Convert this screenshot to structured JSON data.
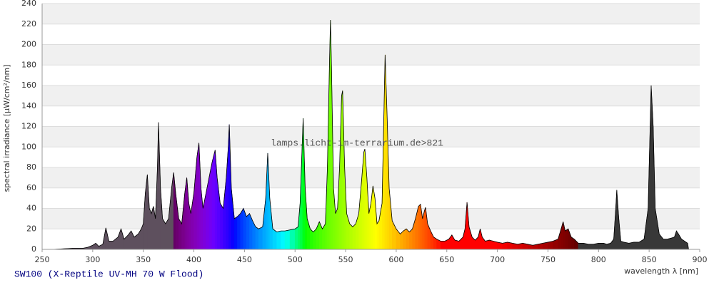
{
  "chart_data": {
    "type": "spectrum",
    "title": "SW100 (X-Reptile UV-MH 70 W Flood)",
    "watermark": "lamps.licht-im-terrarium.de>821",
    "y_label": "spectral irradiance [µW/cm²/nm]",
    "x_label": "wavelength λ [nm]",
    "xlim": [
      250,
      900
    ],
    "xticks": [
      250,
      300,
      350,
      400,
      450,
      500,
      550,
      600,
      650,
      700,
      750,
      800,
      850,
      900
    ],
    "ylim": [
      0,
      240
    ],
    "yticks": [
      0,
      20,
      40,
      60,
      80,
      100,
      120,
      140,
      160,
      180,
      200,
      220,
      240
    ],
    "grid": true,
    "band_color": "#f0f0f0",
    "line_color": "#000000",
    "uv_color": "#5e505e",
    "ir_color": "#383838",
    "visible_range": [
      380,
      780
    ],
    "x": [
      260,
      270,
      280,
      290,
      295,
      300,
      303,
      306,
      310,
      313,
      316,
      320,
      325,
      328,
      331,
      335,
      338,
      341,
      345,
      348,
      350,
      352,
      354,
      356,
      358,
      360,
      362,
      364,
      365,
      367,
      369,
      372,
      375,
      378,
      380,
      382,
      385,
      388,
      391,
      393,
      395,
      397,
      400,
      403,
      405,
      407,
      409,
      412,
      415,
      418,
      421,
      423,
      426,
      429,
      432,
      434,
      435,
      437,
      440,
      443,
      446,
      449,
      452,
      455,
      458,
      461,
      464,
      468,
      471,
      473,
      475,
      478,
      482,
      486,
      490,
      495,
      500,
      503,
      505,
      507,
      508,
      510,
      512,
      515,
      518,
      521,
      524,
      527,
      530,
      532,
      534,
      535,
      536,
      538,
      540,
      542,
      544,
      546,
      547,
      549,
      551,
      554,
      557,
      560,
      563,
      566,
      568,
      569,
      571,
      573,
      575,
      577,
      579,
      581,
      583,
      586,
      588,
      589,
      591,
      593,
      596,
      600,
      604,
      607,
      610,
      613,
      616,
      619,
      622,
      624,
      626,
      628,
      629,
      631,
      634,
      637,
      640,
      644,
      648,
      652,
      655,
      658,
      662,
      666,
      668,
      670,
      672,
      675,
      678,
      681,
      683,
      685,
      688,
      692,
      696,
      700,
      705,
      710,
      715,
      720,
      725,
      730,
      735,
      740,
      745,
      750,
      755,
      760,
      763,
      765,
      767,
      770,
      773,
      776,
      780,
      785,
      790,
      795,
      800,
      805,
      808,
      812,
      815,
      817,
      818,
      820,
      822,
      825,
      830,
      835,
      840,
      845,
      849,
      851,
      852,
      854,
      856,
      860,
      864,
      868,
      872,
      875,
      877,
      879,
      882,
      885,
      888,
      889
    ],
    "values": [
      0,
      0.5,
      1,
      1,
      2,
      4,
      6,
      3,
      5,
      21,
      8,
      8,
      12,
      20,
      10,
      14,
      18,
      12,
      15,
      20,
      25,
      55,
      73,
      40,
      35,
      42,
      30,
      80,
      124,
      60,
      30,
      25,
      30,
      60,
      75,
      55,
      30,
      25,
      55,
      70,
      45,
      35,
      55,
      90,
      104,
      60,
      40,
      55,
      70,
      85,
      97,
      70,
      45,
      40,
      70,
      100,
      122,
      60,
      30,
      32,
      35,
      40,
      32,
      35,
      28,
      22,
      20,
      22,
      50,
      94,
      50,
      20,
      17,
      18,
      18,
      19,
      20,
      22,
      45,
      100,
      128,
      60,
      30,
      20,
      17,
      20,
      27,
      20,
      25,
      80,
      180,
      224,
      180,
      60,
      35,
      40,
      80,
      150,
      155,
      80,
      35,
      25,
      22,
      25,
      35,
      70,
      95,
      98,
      70,
      35,
      45,
      62,
      50,
      25,
      28,
      45,
      140,
      190,
      130,
      60,
      28,
      20,
      15,
      18,
      20,
      17,
      20,
      30,
      42,
      44,
      30,
      38,
      41,
      25,
      18,
      12,
      10,
      8,
      8,
      10,
      14,
      9,
      8,
      12,
      20,
      46,
      22,
      12,
      9,
      12,
      20,
      12,
      8,
      9,
      8,
      7,
      6,
      7,
      6,
      5,
      6,
      5,
      4,
      5,
      6,
      7,
      8,
      10,
      20,
      27,
      18,
      20,
      12,
      10,
      6,
      6,
      5,
      5,
      6,
      6,
      5,
      6,
      10,
      40,
      58,
      30,
      8,
      7,
      6,
      7,
      7,
      10,
      40,
      120,
      160,
      120,
      40,
      15,
      10,
      10,
      11,
      12,
      18,
      15,
      10,
      8,
      6,
      0
    ]
  }
}
